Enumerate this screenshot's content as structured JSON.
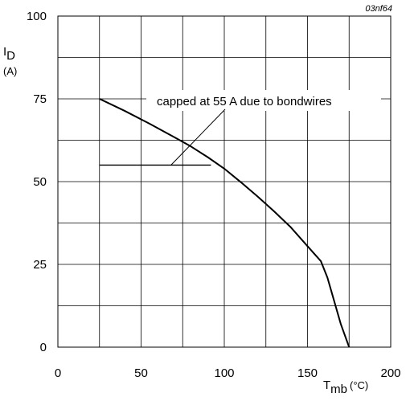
{
  "chart_data": {
    "type": "line",
    "figure_code": "03nf64",
    "ylabel": {
      "symbol": "I",
      "subscript": "D",
      "unit": "(A)"
    },
    "xlabel": {
      "symbol": "T",
      "subscript": "mb",
      "unit": "(°C)"
    },
    "xlim": [
      0,
      200
    ],
    "ylim": [
      0,
      100
    ],
    "xticks": [
      0,
      50,
      100,
      150,
      200
    ],
    "yticks": [
      0,
      25,
      50,
      75,
      100
    ],
    "grid": true,
    "series": [
      {
        "x": [
          25,
          40,
          55,
          70,
          80,
          90,
          100,
          110,
          120,
          130,
          140,
          150,
          158,
          162,
          166,
          170,
          175
        ],
        "y": [
          75,
          71.4,
          67.5,
          63.4,
          60.6,
          57.4,
          53.9,
          49.8,
          45.5,
          41.0,
          36.2,
          30.5,
          26,
          21,
          14,
          7,
          0
        ]
      },
      {
        "x": [
          25,
          92
        ],
        "y": [
          55,
          55
        ]
      }
    ],
    "annotation": {
      "text": "capped at 55 A due to bondwires",
      "points_to": [
        68,
        55
      ]
    }
  }
}
